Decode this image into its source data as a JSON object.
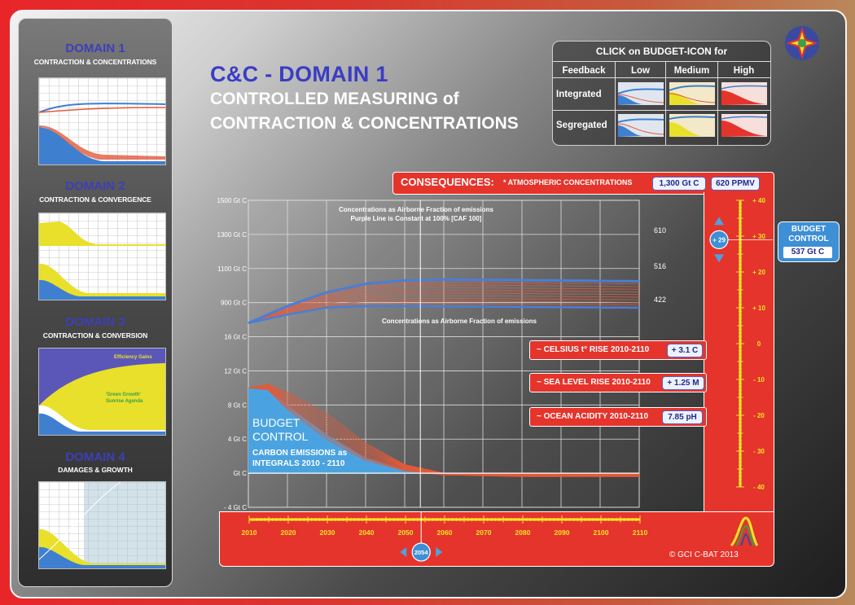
{
  "sidebar": {
    "domains": [
      {
        "title": "DOMAIN 1",
        "subtitle": "CONTRACTION & CONCENTRATIONS"
      },
      {
        "title": "DOMAIN 2",
        "subtitle": "CONTRACTION & CONVERGENCE"
      },
      {
        "title": "DOMAIN 3",
        "subtitle": "CONTRACTION & CONVERSION",
        "label_a": "Efficiency Gains",
        "label_b": "'Green Growth'",
        "label_c": "Sunrise Agenda"
      },
      {
        "title": "DOMAIN 4",
        "subtitle": "DAMAGES & GROWTH"
      }
    ]
  },
  "header": {
    "title_main": "C&C - DOMAIN 1",
    "title_line2": "CONTROLLED MEASURING of",
    "title_line3": "CONTRACTION & CONCENTRATIONS"
  },
  "budget_selector": {
    "heading": "CLICK on BUDGET-ICON for",
    "feedback_label": "Feedback",
    "columns": [
      "Low",
      "Medium",
      "High"
    ],
    "rows": [
      "Integrated",
      "Segregated"
    ]
  },
  "consequences": {
    "label": "CONSEQUENCES:",
    "sublabel": "* ATMOSPHERIC CONCENTRATIONS",
    "gtc": "1,300 Gt C",
    "ppmv": "620 PPMV"
  },
  "chart_data": {
    "type": "line",
    "title": "",
    "annotations": [
      "Concentrations as Airborne Fraction of emissions",
      "Purple Line is Constant at 100% [CAF 100]",
      "Concentrations as Airborne Fraction of emissions"
    ],
    "y_tick_labels": [
      "1500 Gt C",
      "1300 Gt C",
      "1100 Gt C",
      "900 Gt C",
      "16 Gt C",
      "12 Gt C",
      "8 Gt C",
      "4 Gt C",
      "Gt C",
      "- 4 Gt C"
    ],
    "x_tick_labels": [
      "2010",
      "2020",
      "2030",
      "2040",
      "2050",
      "2060",
      "2070",
      "2080",
      "2090",
      "2100",
      "2110"
    ],
    "ppmv_labels": [
      "610 ppmv",
      "516 ppmv",
      "422 ppmv"
    ],
    "budget_label_1": "BUDGET",
    "budget_label_2": "CONTROL",
    "budget_sub_1": "CARBON EMISSIONS as",
    "budget_sub_2": "INTEGRALS 2010 - 2110",
    "concentration_upper_gtc": {
      "x": [
        2010,
        2020,
        2030,
        2040,
        2050,
        2060,
        2080,
        2110
      ],
      "y": [
        780,
        880,
        960,
        1010,
        1030,
        1035,
        1032,
        1025
      ]
    },
    "concentration_lower_gtc": {
      "x": [
        2010,
        2020,
        2030,
        2040,
        2050,
        2060,
        2080,
        2110
      ],
      "y": [
        780,
        830,
        870,
        880,
        880,
        878,
        875,
        870
      ]
    },
    "emissions_upper_gtc": {
      "x": [
        2010,
        2015,
        2020,
        2030,
        2040,
        2050,
        2060,
        2080,
        2110
      ],
      "y": [
        10,
        10.4,
        9.5,
        7,
        3.5,
        1,
        0,
        0,
        0
      ]
    },
    "emissions_lower_gtc": {
      "x": [
        2010,
        2015,
        2020,
        2030,
        2040,
        2050,
        2060,
        2080,
        2110
      ],
      "y": [
        10,
        9.8,
        7.5,
        4,
        1.5,
        0.3,
        -0.2,
        -0.4,
        -0.4
      ]
    },
    "marker_year": "2054"
  },
  "right_scale": {
    "ticks": [
      "+ 40",
      "+ 30",
      "+ 20",
      "+ 10",
      "0",
      "- 10",
      "- 20",
      "- 30",
      "- 40"
    ],
    "marker": "+ 29"
  },
  "impacts": [
    {
      "label": "~ CELSIUS t° RISE 2010-2110",
      "value": "+ 3.1 C"
    },
    {
      "label": "~ SEA LEVEL RISE 2010-2110",
      "value": "+ 1.25 M"
    },
    {
      "label": "~ OCEAN ACIDITY 2010-2110",
      "value": "7.85 pH"
    }
  ],
  "budget_control": {
    "title_1": "BUDGET",
    "title_2": "CONTROL",
    "value": "537 Gt C"
  },
  "copyright": "© GCI C-BAT 2013",
  "colors": {
    "accent_red": "#e5342b",
    "title_blue": "#3a3dc4",
    "ruler_yellow": "#f5e42a",
    "emission_blue": "#4aa3e0"
  }
}
